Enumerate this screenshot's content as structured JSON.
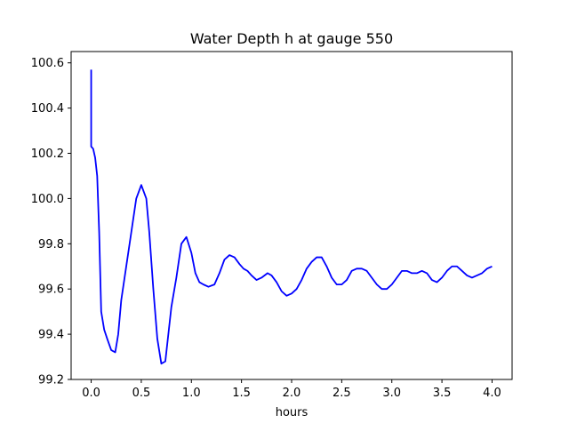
{
  "chart_data": {
    "type": "line",
    "title": "Water Depth h at gauge 550",
    "xlabel": "hours",
    "ylabel": "",
    "xlim": [
      -0.2,
      4.2
    ],
    "ylim": [
      99.2,
      100.65
    ],
    "xticks": [
      0.0,
      0.5,
      1.0,
      1.5,
      2.0,
      2.5,
      3.0,
      3.5,
      4.0
    ],
    "xtick_labels": [
      "0.0",
      "0.5",
      "1.0",
      "1.5",
      "2.0",
      "2.5",
      "3.0",
      "3.5",
      "4.0"
    ],
    "yticks": [
      99.2,
      99.4,
      99.6,
      99.8,
      100.0,
      100.2,
      100.4,
      100.6
    ],
    "ytick_labels": [
      "99.2",
      "99.4",
      "99.6",
      "99.8",
      "100.0",
      "100.2",
      "100.4",
      "100.6"
    ],
    "grid": false,
    "series": [
      {
        "color": "#0000ff",
        "x": [
          0.0,
          0.0,
          0.0,
          0.02,
          0.04,
          0.06,
          0.08,
          0.1,
          0.13,
          0.16,
          0.2,
          0.24,
          0.27,
          0.3,
          0.35,
          0.4,
          0.45,
          0.5,
          0.55,
          0.58,
          0.62,
          0.66,
          0.7,
          0.74,
          0.77,
          0.8,
          0.85,
          0.9,
          0.95,
          1.0,
          1.04,
          1.08,
          1.12,
          1.17,
          1.23,
          1.28,
          1.33,
          1.38,
          1.43,
          1.48,
          1.52,
          1.56,
          1.6,
          1.65,
          1.7,
          1.76,
          1.8,
          1.85,
          1.9,
          1.95,
          2.0,
          2.05,
          2.1,
          2.15,
          2.2,
          2.25,
          2.3,
          2.35,
          2.4,
          2.45,
          2.5,
          2.55,
          2.6,
          2.65,
          2.7,
          2.75,
          2.8,
          2.85,
          2.9,
          2.95,
          3.0,
          3.05,
          3.1,
          3.15,
          3.2,
          3.25,
          3.3,
          3.35,
          3.4,
          3.45,
          3.5,
          3.55,
          3.6,
          3.65,
          3.7,
          3.75,
          3.8,
          3.85,
          3.9,
          3.95,
          4.0
        ],
        "y": [
          100.57,
          100.23,
          100.23,
          100.22,
          100.18,
          100.1,
          99.85,
          99.5,
          99.42,
          99.38,
          99.33,
          99.32,
          99.4,
          99.55,
          99.7,
          99.85,
          100.0,
          100.06,
          100.0,
          99.85,
          99.6,
          99.38,
          99.27,
          99.28,
          99.4,
          99.52,
          99.65,
          99.8,
          99.83,
          99.76,
          99.67,
          99.63,
          99.62,
          99.61,
          99.62,
          99.67,
          99.73,
          99.75,
          99.74,
          99.71,
          99.69,
          99.68,
          99.66,
          99.64,
          99.65,
          99.67,
          99.66,
          99.63,
          99.59,
          99.57,
          99.58,
          99.6,
          99.64,
          99.69,
          99.72,
          99.74,
          99.74,
          99.7,
          99.65,
          99.62,
          99.62,
          99.64,
          99.68,
          99.69,
          99.69,
          99.68,
          99.65,
          99.62,
          99.6,
          99.6,
          99.62,
          99.65,
          99.68,
          99.68,
          99.67,
          99.67,
          99.68,
          99.67,
          99.64,
          99.63,
          99.65,
          99.68,
          99.7,
          99.7,
          99.68,
          99.66,
          99.65,
          99.66,
          99.67,
          99.69,
          99.7
        ]
      }
    ]
  }
}
